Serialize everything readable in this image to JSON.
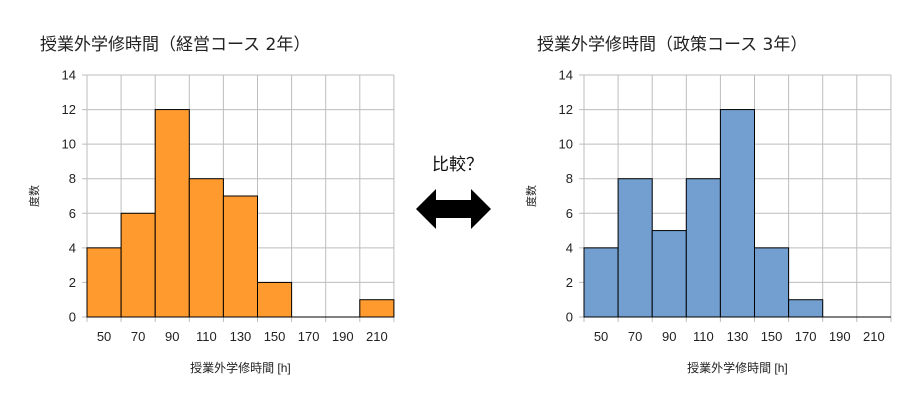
{
  "comparison_label": "比較？",
  "chart_data": [
    {
      "type": "bar",
      "title": "授業外学修時間（経営コース 2年）",
      "xlabel": "授業外学修時間 [h]",
      "ylabel": "度数",
      "categories": [
        "50",
        "70",
        "90",
        "110",
        "130",
        "150",
        "170",
        "190",
        "210"
      ],
      "values": [
        4,
        6,
        12,
        8,
        7,
        2,
        0,
        0,
        1
      ],
      "ylim": [
        0,
        14
      ],
      "yticks": [
        "0",
        "2",
        "4",
        "6",
        "8",
        "10",
        "12",
        "14"
      ],
      "bar_color": "#ff9a2f",
      "grid": true
    },
    {
      "type": "bar",
      "title": "授業外学修時間（政策コース 3年）",
      "xlabel": "授業外学修時間 [h]",
      "ylabel": "度数",
      "categories": [
        "50",
        "70",
        "90",
        "110",
        "130",
        "150",
        "170",
        "190",
        "210"
      ],
      "values": [
        4,
        8,
        5,
        8,
        12,
        4,
        1,
        0,
        0
      ],
      "ylim": [
        0,
        14
      ],
      "yticks": [
        "0",
        "2",
        "4",
        "6",
        "8",
        "10",
        "12",
        "14"
      ],
      "bar_color": "#729fcf",
      "grid": true
    }
  ]
}
